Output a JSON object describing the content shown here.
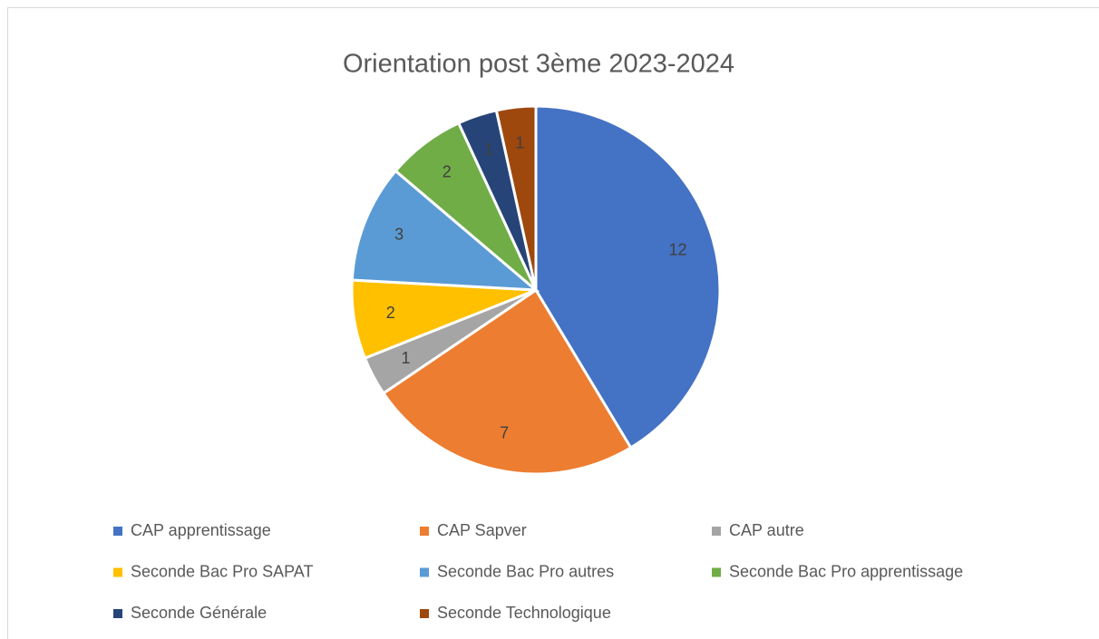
{
  "chart_data": {
    "type": "pie",
    "title": "Orientation post 3ème 2023-2024",
    "categories": [
      "CAP apprentissage",
      "CAP Sapver",
      "CAP autre",
      "Seconde Bac Pro SAPAT",
      "Seconde Bac Pro autres",
      "Seconde Bac Pro apprentissage",
      "Seconde Générale",
      "Seconde Technologique"
    ],
    "values": [
      12,
      7,
      1,
      2,
      3,
      2,
      1,
      1
    ],
    "colors": [
      "#4472c4",
      "#ed7d31",
      "#a5a5a5",
      "#ffc000",
      "#5b9bd5",
      "#70ad47",
      "#264478",
      "#9e480e"
    ],
    "legend": "bottom"
  }
}
